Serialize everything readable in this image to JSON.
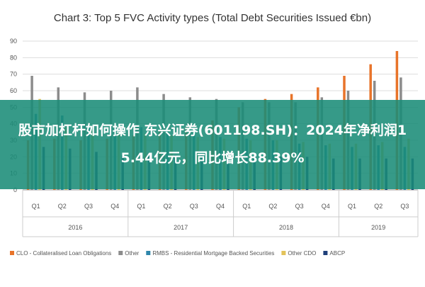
{
  "chart_data": {
    "type": "bar",
    "title": "Chart 3: Top 5 FVC Activity types (Total Debt Securities Issued €bn)",
    "ylim": [
      0,
      90
    ],
    "y_ticks": [
      "0",
      "10",
      "20",
      "30",
      "40",
      "50",
      "60",
      "70",
      "80",
      "90"
    ],
    "grid": true,
    "legend_position": "bottom",
    "categories": [
      "Q1",
      "Q2",
      "Q3",
      "Q4",
      "Q1",
      "Q2",
      "Q3",
      "Q4",
      "Q1",
      "Q2",
      "Q3",
      "Q4",
      "Q1",
      "Q2",
      "Q3"
    ],
    "groups": [
      {
        "label": "2016",
        "span": 4
      },
      {
        "label": "2017",
        "span": 4
      },
      {
        "label": "2018",
        "span": 4
      },
      {
        "label": "2019",
        "span": 3
      }
    ],
    "series": [
      {
        "name": "CLO - Collateralised Loan Obligations",
        "color": "#E8742A",
        "values": [
          30,
          31,
          30,
          31,
          33,
          36,
          38,
          42,
          50,
          55,
          58,
          62,
          69,
          76,
          84
        ]
      },
      {
        "name": "Other",
        "color": "#8C8C8C",
        "values": [
          69,
          62,
          59,
          60,
          62,
          58,
          56,
          55,
          53,
          53,
          53,
          56,
          60,
          66,
          68
        ]
      },
      {
        "name": "RMBS - Residential Mortgage Backed Securities",
        "color": "#2E86AB",
        "values": [
          46,
          45,
          38,
          37,
          38,
          36,
          33,
          32,
          31,
          30,
          28,
          27,
          26,
          27,
          26
        ]
      },
      {
        "name": "Other CDO",
        "color": "#E3C35A",
        "values": [
          55,
          38,
          36,
          35,
          34,
          33,
          32,
          31,
          30,
          30,
          29,
          28,
          28,
          29,
          31
        ]
      },
      {
        "name": "ABCP",
        "color": "#1F3F7A",
        "values": [
          26,
          25,
          23,
          21,
          21,
          21,
          21,
          20,
          20,
          20,
          20,
          19,
          19,
          19,
          19
        ]
      }
    ]
  },
  "overlay": {
    "text": "股市加杠杆如何操作 东兴证券(601198.SH)：2024年净利润15.44亿元，同比增长88.39%"
  }
}
